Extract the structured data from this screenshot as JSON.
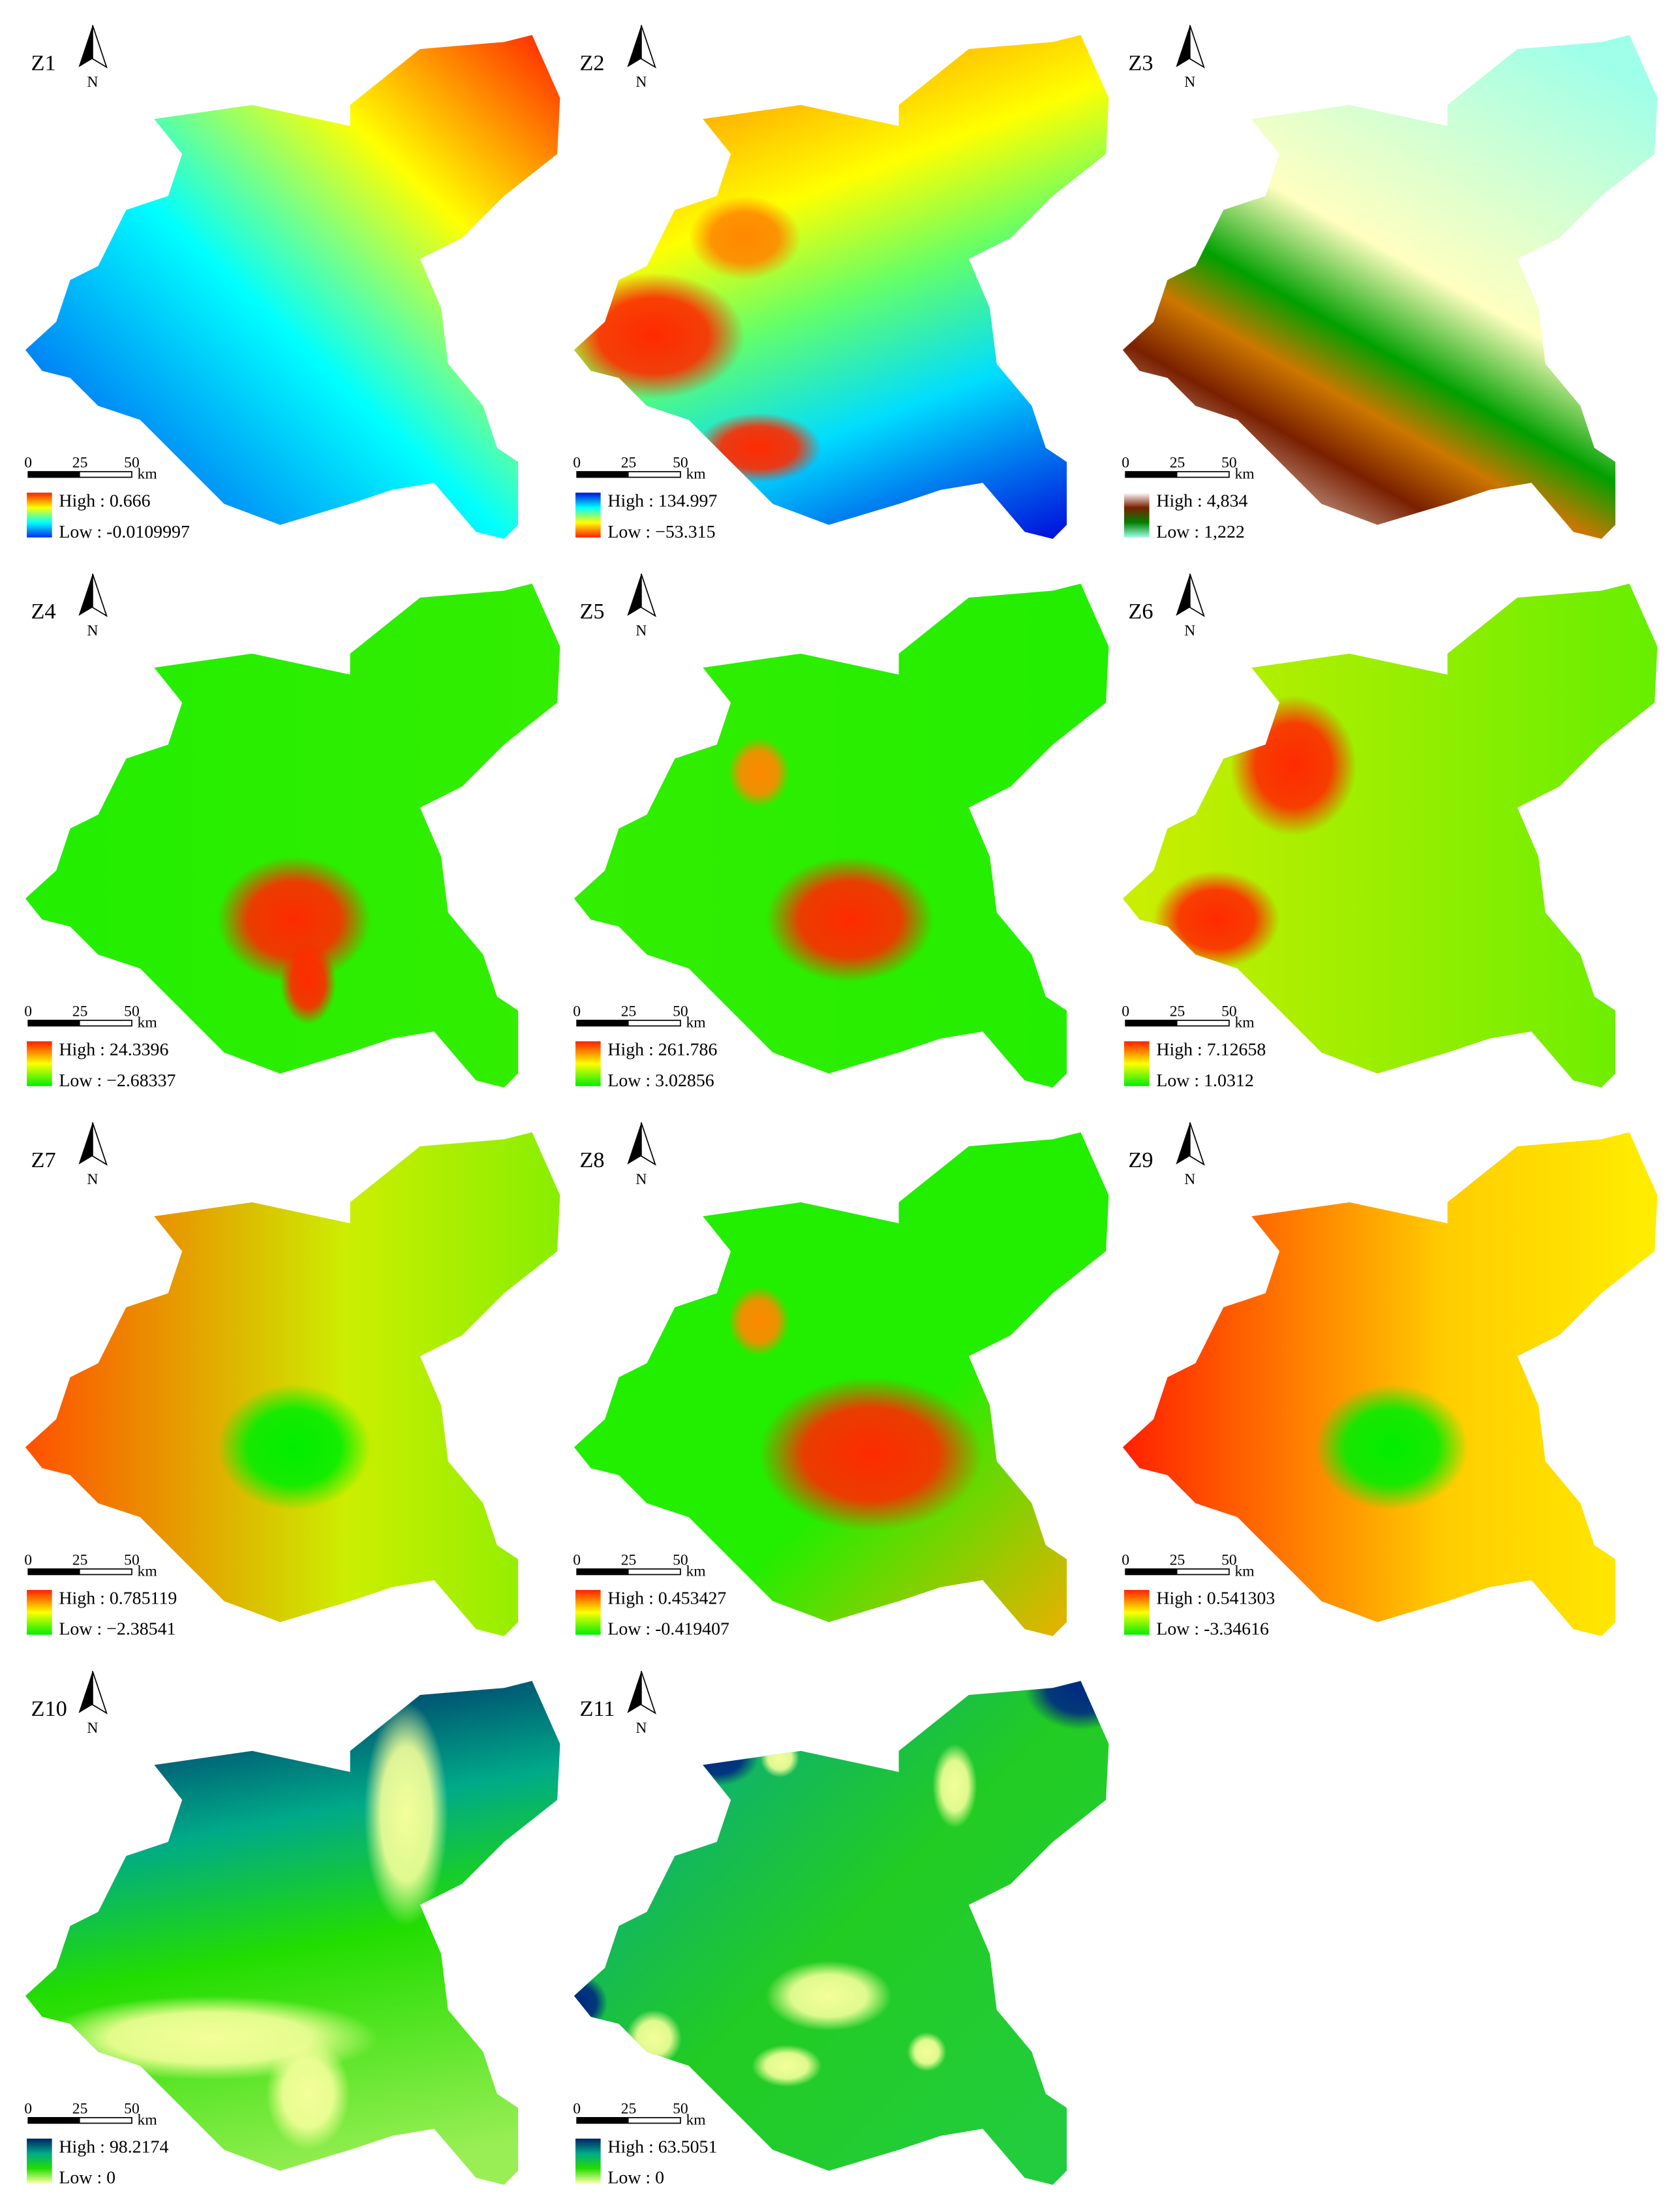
{
  "panels": [
    {
      "label": "Z1",
      "north": "N",
      "scale": [
        "0",
        "25",
        "50"
      ],
      "scale_unit": "km",
      "high": "High : 0.666",
      "low": "Low : -0.0109997"
    },
    {
      "label": "Z2",
      "north": "N",
      "scale": [
        "0",
        "25",
        "50"
      ],
      "scale_unit": "km",
      "high": "High : 134.997",
      "low": "Low : −53.315"
    },
    {
      "label": "Z3",
      "north": "N",
      "scale": [
        "0",
        "25",
        "50"
      ],
      "scale_unit": "km",
      "high": "High : 4,834",
      "low": "Low : 1,222"
    },
    {
      "label": "Z4",
      "north": "N",
      "scale": [
        "0",
        "25",
        "50"
      ],
      "scale_unit": "km",
      "high": "High : 24.3396",
      "low": "Low : −2.68337"
    },
    {
      "label": "Z5",
      "north": "N",
      "scale": [
        "0",
        "25",
        "50"
      ],
      "scale_unit": "km",
      "high": "High : 261.786",
      "low": "Low : 3.02856"
    },
    {
      "label": "Z6",
      "north": "N",
      "scale": [
        "0",
        "25",
        "50"
      ],
      "scale_unit": "km",
      "high": "High : 7.12658",
      "low": "Low : 1.0312"
    },
    {
      "label": "Z7",
      "north": "N",
      "scale": [
        "0",
        "25",
        "50"
      ],
      "scale_unit": "km",
      "high": "High : 0.785119",
      "low": "Low : −2.38541"
    },
    {
      "label": "Z8",
      "north": "N",
      "scale": [
        "0",
        "25",
        "50"
      ],
      "scale_unit": "km",
      "high": "High : 0.453427",
      "low": "Low : -0.419407"
    },
    {
      "label": "Z9",
      "north": "N",
      "scale": [
        "0",
        "25",
        "50"
      ],
      "scale_unit": "km",
      "high": "High : 0.541303",
      "low": "Low : -3.34616"
    },
    {
      "label": "Z10",
      "north": "N",
      "scale": [
        "0",
        "25",
        "50"
      ],
      "scale_unit": "km",
      "high": "High : 98.2174",
      "low": "Low : 0"
    },
    {
      "label": "Z11",
      "north": "N",
      "scale": [
        "0",
        "25",
        "50"
      ],
      "scale_unit": "km",
      "high": "High : 63.5051",
      "low": "Low : 0"
    }
  ]
}
